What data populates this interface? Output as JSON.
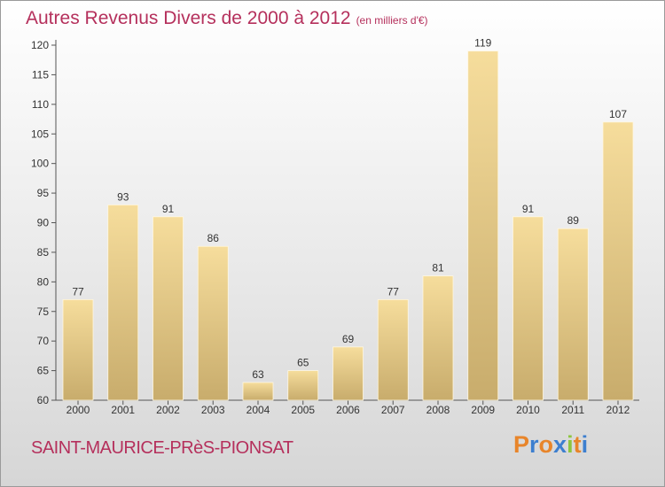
{
  "header": {
    "title": "Autres Revenus Divers de 2000 à 2012",
    "unit": "(en milliers d'€)"
  },
  "footer": {
    "place": "SAINT-MAURICE-PRèS-PIONSAT",
    "logo": "Proxiti"
  },
  "colors": {
    "title": "#b5305c",
    "bar_top": "#f6dd9c",
    "bar_bottom": "#c8ac6c",
    "logo_letters": [
      "#e8852a",
      "#3d7fcf",
      "#e8852a",
      "#3d7fcf",
      "#8cc63f",
      "#e8852a",
      "#3d7fcf"
    ]
  },
  "chart_data": {
    "type": "bar",
    "categories": [
      "2000",
      "2001",
      "2002",
      "2003",
      "2004",
      "2005",
      "2006",
      "2007",
      "2008",
      "2009",
      "2010",
      "2011",
      "2012"
    ],
    "values": [
      77,
      93,
      91,
      86,
      63,
      65,
      69,
      77,
      81,
      119,
      91,
      89,
      107
    ],
    "data_labels": [
      "77",
      "93",
      "91",
      "86",
      "63",
      "65",
      "69",
      "77",
      "81",
      "119",
      "91",
      "89",
      "107"
    ],
    "ylim": [
      60,
      120
    ],
    "yticks": [
      60,
      65,
      70,
      75,
      80,
      85,
      90,
      95,
      100,
      105,
      110,
      115,
      120
    ],
    "xlabel": "",
    "ylabel": "",
    "grid": false,
    "legend": "none"
  }
}
